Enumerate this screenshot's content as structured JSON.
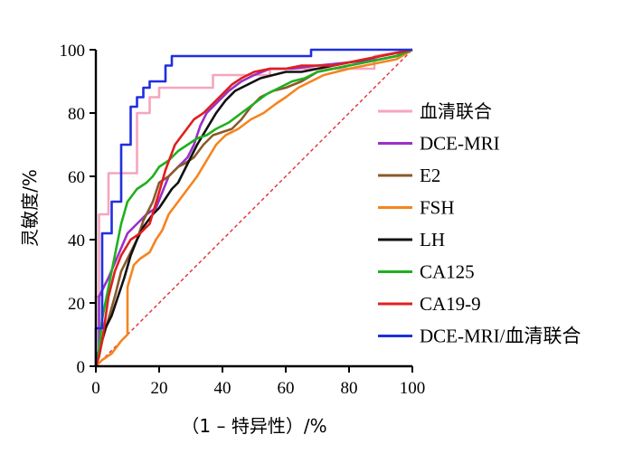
{
  "chart_data": {
    "type": "line",
    "xlabel": "（1 – 特异性）/%",
    "ylabel": "灵敏度/%",
    "xlim": [
      0,
      100
    ],
    "ylim": [
      0,
      100
    ],
    "x_ticks": [
      0,
      20,
      40,
      60,
      80,
      100
    ],
    "y_ticks": [
      0,
      20,
      40,
      60,
      80,
      100
    ],
    "grid": false,
    "legend_position": "right",
    "reference_line": {
      "x": [
        0,
        100
      ],
      "y": [
        0,
        100
      ],
      "color": "#e03030",
      "style": "dashed"
    },
    "series": [
      {
        "name": "血清联合",
        "color": "#f4a6bd",
        "x": [
          0,
          0,
          1,
          1,
          4,
          4,
          13,
          13,
          17,
          17,
          20,
          20,
          28,
          28,
          37,
          37,
          55,
          55,
          88,
          88,
          100
        ],
        "y": [
          0,
          22,
          22,
          48,
          48,
          61,
          61,
          80,
          80,
          85,
          85,
          88,
          88,
          88,
          88,
          92,
          92,
          94,
          94,
          98,
          100
        ]
      },
      {
        "name": "DCE-MRI",
        "color": "#9b30c8",
        "x": [
          0,
          1,
          1,
          4,
          7,
          10,
          13,
          16,
          19,
          21,
          23,
          26,
          29,
          31,
          33,
          35,
          37,
          39,
          42,
          46,
          50,
          55,
          62,
          70,
          80,
          90,
          95,
          100
        ],
        "y": [
          0,
          5,
          22,
          28,
          35,
          42,
          45,
          48,
          50,
          55,
          60,
          63,
          66,
          70,
          76,
          80,
          82,
          84,
          87,
          90,
          92,
          94,
          94,
          95,
          96,
          97,
          98,
          100
        ]
      },
      {
        "name": "E2",
        "color": "#8a5a2b",
        "x": [
          0,
          2,
          4,
          6,
          8,
          11,
          13,
          15,
          18,
          20,
          23,
          26,
          28,
          31,
          34,
          37,
          40,
          43,
          46,
          49,
          52,
          56,
          60,
          65,
          70,
          75,
          80,
          85,
          90,
          95,
          100
        ],
        "y": [
          0,
          8,
          15,
          22,
          30,
          36,
          40,
          46,
          52,
          58,
          60,
          63,
          64,
          66,
          70,
          73,
          74,
          75,
          78,
          82,
          85,
          87,
          88,
          90,
          93,
          94,
          95,
          96,
          97,
          98,
          100
        ]
      },
      {
        "name": "FSH",
        "color": "#f5841f",
        "x": [
          0,
          2,
          5,
          8,
          10,
          10,
          12,
          14,
          17,
          19,
          21,
          23,
          26,
          29,
          32,
          35,
          38,
          41,
          45,
          49,
          53,
          57,
          60,
          64,
          68,
          72,
          76,
          80,
          85,
          90,
          95,
          100
        ],
        "y": [
          0,
          2,
          4,
          8,
          10,
          25,
          32,
          34,
          36,
          40,
          43,
          48,
          52,
          56,
          60,
          65,
          70,
          73,
          75,
          78,
          80,
          83,
          85,
          88,
          90,
          92,
          93,
          94,
          95,
          96,
          97,
          100
        ]
      },
      {
        "name": "LH",
        "color": "#111111",
        "x": [
          0,
          1,
          3,
          5,
          7,
          9,
          11,
          13,
          15,
          18,
          20,
          22,
          24,
          26,
          28,
          30,
          32,
          35,
          38,
          41,
          44,
          48,
          52,
          56,
          60,
          65,
          70,
          75,
          80,
          85,
          90,
          95,
          100
        ],
        "y": [
          0,
          5,
          12,
          16,
          22,
          28,
          35,
          40,
          44,
          48,
          50,
          53,
          56,
          58,
          62,
          66,
          70,
          75,
          80,
          84,
          87,
          89,
          91,
          92,
          93,
          93,
          94,
          95,
          96,
          97,
          98,
          99,
          100
        ]
      },
      {
        "name": "CA125",
        "color": "#1fb01f",
        "x": [
          0,
          1,
          2,
          4,
          6,
          8,
          10,
          13,
          16,
          18,
          20,
          23,
          26,
          29,
          32,
          35,
          38,
          42,
          46,
          50,
          54,
          58,
          62,
          66,
          70,
          75,
          80,
          85,
          90,
          95,
          100
        ],
        "y": [
          0,
          5,
          15,
          25,
          35,
          45,
          52,
          56,
          58,
          60,
          63,
          65,
          68,
          70,
          72,
          73,
          75,
          77,
          80,
          83,
          86,
          88,
          90,
          91,
          93,
          94,
          95,
          96,
          97,
          98,
          100
        ]
      },
      {
        "name": "CA19-9",
        "color": "#e01f1f",
        "x": [
          0,
          1,
          2,
          4,
          6,
          8,
          11,
          14,
          17,
          20,
          22,
          25,
          28,
          31,
          34,
          37,
          40,
          43,
          46,
          50,
          55,
          60,
          65,
          70,
          75,
          80,
          85,
          90,
          95,
          100
        ],
        "y": [
          0,
          3,
          8,
          22,
          30,
          35,
          40,
          42,
          45,
          55,
          62,
          70,
          74,
          78,
          80,
          83,
          86,
          89,
          91,
          93,
          94,
          94,
          95,
          95,
          95,
          96,
          97,
          98,
          99,
          100
        ]
      },
      {
        "name": "DCE-MRI/血清联合",
        "color": "#1f2fe0",
        "x": [
          0,
          0,
          2,
          2,
          5,
          5,
          8,
          8,
          11,
          11,
          13,
          13,
          15,
          15,
          17,
          17,
          22,
          22,
          24,
          24,
          68,
          68,
          100
        ],
        "y": [
          0,
          12,
          12,
          42,
          42,
          52,
          52,
          70,
          70,
          82,
          82,
          85,
          85,
          88,
          88,
          90,
          90,
          95,
          95,
          98,
          98,
          100,
          100
        ]
      }
    ]
  }
}
